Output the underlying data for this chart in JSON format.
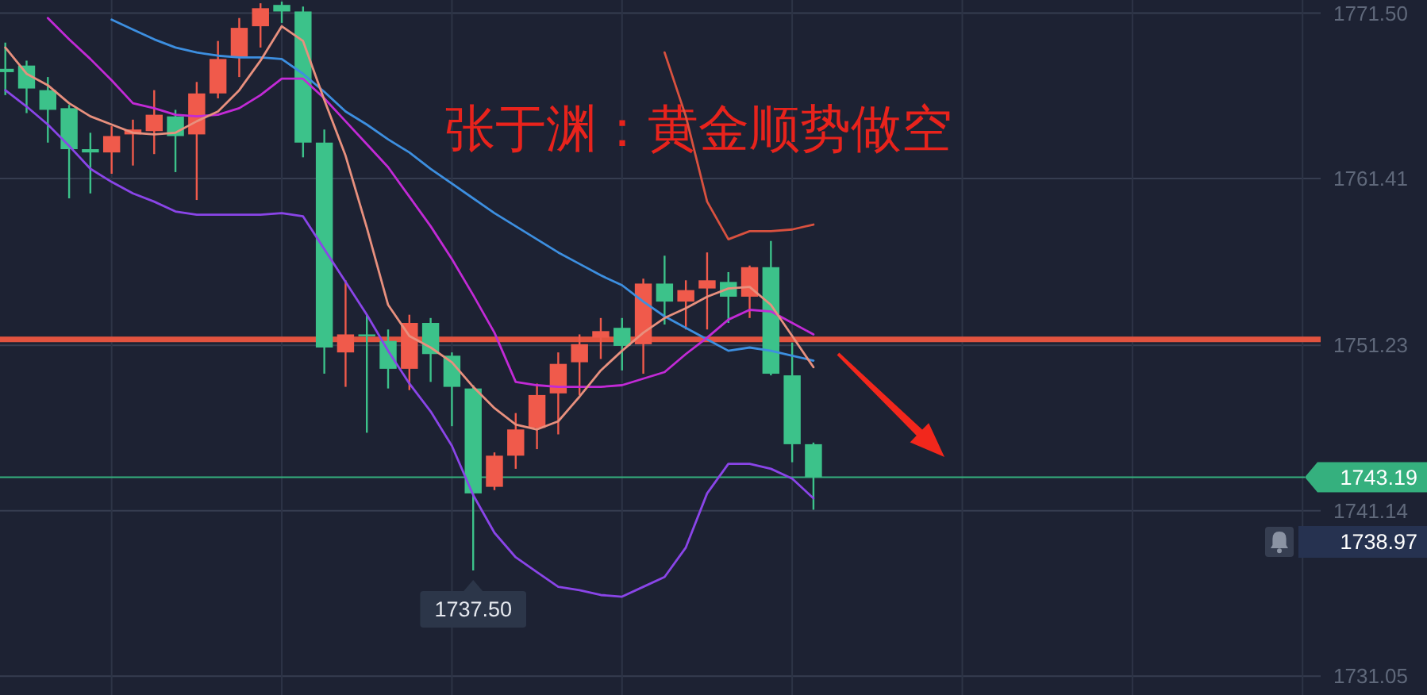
{
  "chart_data": {
    "type": "candlestick",
    "title": "张于渊：黄金顺势做空",
    "categories": [
      null,
      null,
      null,
      null,
      null,
      null,
      null,
      null,
      null,
      null,
      null,
      null,
      null,
      null,
      null,
      null,
      null,
      null,
      null,
      null,
      null,
      null,
      null,
      null,
      null,
      null,
      null,
      null,
      null,
      null,
      null,
      null,
      null,
      null,
      null,
      null,
      null,
      null,
      null,
      null,
      null,
      null,
      null,
      null,
      null,
      null,
      null,
      null,
      null,
      null,
      null,
      null,
      null,
      null,
      null,
      null,
      null,
      null,
      null,
      null,
      null,
      null
    ],
    "ohlc": [
      [
        1768.1,
        1769.7,
        1766.5,
        1767.9
      ],
      [
        1768.3,
        1768.6,
        1765.4,
        1766.9
      ],
      [
        1766.8,
        1767.6,
        1763.6,
        1765.6
      ],
      [
        1765.7,
        1765.9,
        1760.2,
        1763.2
      ],
      [
        1763.2,
        1764.2,
        1760.5,
        1763.0
      ],
      [
        1763.0,
        1764.6,
        1761.7,
        1764.0
      ],
      [
        1764.1,
        1765.0,
        1762.2,
        1764.4
      ],
      [
        1764.3,
        1766.8,
        1762.9,
        1765.3
      ],
      [
        1765.2,
        1765.6,
        1761.8,
        1764.0
      ],
      [
        1764.1,
        1767.3,
        1760.1,
        1766.6
      ],
      [
        1766.6,
        1769.8,
        1766.3,
        1768.7
      ],
      [
        1768.8,
        1771.2,
        1767.6,
        1770.6
      ],
      [
        1770.7,
        1772.1,
        1769.4,
        1771.8
      ],
      [
        1772.0,
        1772.2,
        1770.9,
        1771.6
      ],
      [
        1771.6,
        1771.9,
        1762.7,
        1763.6
      ],
      [
        1763.6,
        1764.4,
        1749.5,
        1751.1
      ],
      [
        1750.8,
        1755.2,
        1748.7,
        1751.9
      ],
      [
        1751.9,
        1753.1,
        1745.9,
        1751.8
      ],
      [
        1751.5,
        1752.2,
        1748.6,
        1749.8
      ],
      [
        1749.8,
        1753.1,
        1748.5,
        1752.6
      ],
      [
        1752.6,
        1752.9,
        1749.0,
        1750.7
      ],
      [
        1750.6,
        1750.8,
        1746.3,
        1748.7
      ],
      [
        1748.6,
        1748.8,
        1737.5,
        1742.2
      ],
      [
        1742.6,
        1744.7,
        1742.4,
        1744.5
      ],
      [
        1744.5,
        1747.1,
        1743.7,
        1746.1
      ],
      [
        1746.2,
        1748.9,
        1744.9,
        1748.2
      ],
      [
        1748.3,
        1750.8,
        1745.8,
        1750.1
      ],
      [
        1750.2,
        1751.9,
        1748.2,
        1751.3
      ],
      [
        1751.7,
        1752.9,
        1750.4,
        1752.1
      ],
      [
        1752.3,
        1752.9,
        1749.7,
        1751.2
      ],
      [
        1751.3,
        1755.3,
        1749.5,
        1755.0
      ],
      [
        1755.0,
        1756.7,
        1752.5,
        1753.9
      ],
      [
        1753.9,
        1755.2,
        1752.2,
        1754.6
      ],
      [
        1754.7,
        1756.9,
        1752.2,
        1755.2
      ],
      [
        1755.1,
        1755.7,
        1752.6,
        1754.2
      ],
      [
        1754.2,
        1756.1,
        1752.9,
        1756.0
      ],
      [
        1756.0,
        1757.6,
        1749.4,
        1749.5
      ],
      [
        1749.4,
        1751.4,
        1744.1,
        1745.2
      ],
      [
        1745.2,
        1745.3,
        1741.2,
        1743.19
      ],
      null,
      null,
      null,
      null,
      null,
      null,
      null,
      null,
      null,
      null,
      null,
      null,
      null,
      null,
      null,
      null,
      null,
      null,
      null,
      null,
      null,
      null,
      null
    ],
    "series": [
      {
        "type": "line",
        "color": "#8a45e8",
        "values": [
          1766.8,
          1765.8,
          1764.7,
          1763.4,
          1762.0,
          1761.2,
          1760.5,
          1760.0,
          1759.4,
          1759.2,
          1759.2,
          1759.2,
          1759.2,
          1759.3,
          1759.1,
          1757.1,
          1755.1,
          1753.1,
          1750.9,
          1748.9,
          1747.2,
          1745.1,
          1742.1,
          1739.8,
          1738.3,
          1737.4,
          1736.5,
          1736.3,
          1736.0,
          1735.9,
          1736.5,
          1737.1,
          1738.9,
          1742.2,
          1744.0,
          1744.0,
          1743.7,
          1743.1,
          1741.9,
          null,
          null,
          null,
          null,
          null,
          null,
          null,
          null,
          null,
          null,
          null,
          null,
          null,
          null,
          null,
          null,
          null,
          null,
          null,
          null,
          null,
          null,
          null
        ]
      },
      {
        "type": "line",
        "color": "#d9513f",
        "values": [
          null,
          null,
          null,
          null,
          null,
          null,
          null,
          null,
          null,
          null,
          null,
          null,
          null,
          null,
          null,
          null,
          null,
          null,
          null,
          null,
          null,
          null,
          null,
          null,
          null,
          null,
          null,
          null,
          null,
          null,
          null,
          1769.1,
          1765.2,
          1760.0,
          1757.7,
          1758.2,
          1758.2,
          1758.3,
          1758.6,
          null,
          null,
          null,
          null,
          null,
          null,
          null,
          null,
          null,
          null,
          null,
          null,
          null,
          null,
          null,
          null,
          null,
          null,
          null,
          null,
          null,
          null,
          null
        ]
      },
      {
        "type": "line",
        "color": "#3d8fe0",
        "values": [
          null,
          null,
          null,
          null,
          null,
          1771.1,
          1770.5,
          1769.9,
          1769.4,
          1769.1,
          1768.9,
          1768.8,
          1768.8,
          1768.7,
          1767.8,
          1766.7,
          1765.5,
          1764.7,
          1763.8,
          1763.0,
          1762.0,
          1761.1,
          1760.2,
          1759.3,
          1758.5,
          1757.7,
          1756.9,
          1756.2,
          1755.5,
          1754.9,
          1753.9,
          1753.0,
          1752.3,
          1751.6,
          1750.9,
          1751.1,
          1750.9,
          1750.6,
          1750.3,
          null,
          null,
          null,
          null,
          null,
          null,
          null,
          null,
          null,
          null,
          null,
          null,
          null,
          null,
          null,
          null,
          null,
          null,
          null,
          null,
          null,
          null,
          null
        ]
      },
      {
        "type": "line",
        "color": "#c22ad6",
        "values": [
          null,
          null,
          1771.2,
          1769.9,
          1768.7,
          1767.4,
          1766.0,
          1765.7,
          1765.3,
          1765.2,
          1765.3,
          1765.7,
          1766.5,
          1767.5,
          1767.5,
          1766.3,
          1764.9,
          1763.5,
          1762.1,
          1760.3,
          1758.5,
          1756.5,
          1754.3,
          1752.0,
          1749.0,
          1748.8,
          1748.7,
          1748.7,
          1748.7,
          1748.8,
          1749.2,
          1749.6,
          1750.7,
          1751.7,
          1752.8,
          1753.4,
          1753.3,
          1752.6,
          1751.9,
          null,
          null,
          null,
          null,
          null,
          null,
          null,
          null,
          null,
          null,
          null,
          null,
          null,
          null,
          null,
          null,
          null,
          null,
          null,
          null,
          null,
          null,
          null
        ]
      },
      {
        "type": "line",
        "color": "#e8907e",
        "values": [
          1769.4,
          1767.8,
          1767.1,
          1766.0,
          1765.2,
          1764.7,
          1764.2,
          1764.1,
          1764.2,
          1764.9,
          1765.5,
          1766.8,
          1768.6,
          1770.7,
          1769.8,
          1766.2,
          1762.8,
          1758.4,
          1753.7,
          1751.8,
          1751.1,
          1750.2,
          1748.7,
          1747.4,
          1746.4,
          1746.1,
          1746.6,
          1748.1,
          1749.7,
          1750.9,
          1752.0,
          1752.9,
          1753.5,
          1754.2,
          1754.7,
          1754.8,
          1753.7,
          1751.8,
          1749.9,
          null,
          null,
          null,
          null,
          null,
          null,
          null,
          null,
          null,
          null,
          null,
          null,
          null,
          null,
          null,
          null,
          null,
          null,
          null,
          null,
          null,
          null,
          null
        ]
      }
    ],
    "ylim": [
      1729.9,
      1772.3
    ],
    "yticks": [
      1731.05,
      1741.14,
      1751.23,
      1761.41,
      {
        "value": 1771.5,
        "label": "1771.50"
      }
    ],
    "grid": true,
    "tick_labels": "y",
    "ref_lines": [
      {
        "axis": "y",
        "value": 1751.6,
        "color": "#e2533f"
      },
      {
        "axis": "y",
        "value": 1743.19,
        "label": "1743.19",
        "color": "#35b07e"
      }
    ],
    "annotations": [
      {
        "text": "1737.50",
        "y": 1737.5
      },
      "1738.97"
    ]
  }
}
